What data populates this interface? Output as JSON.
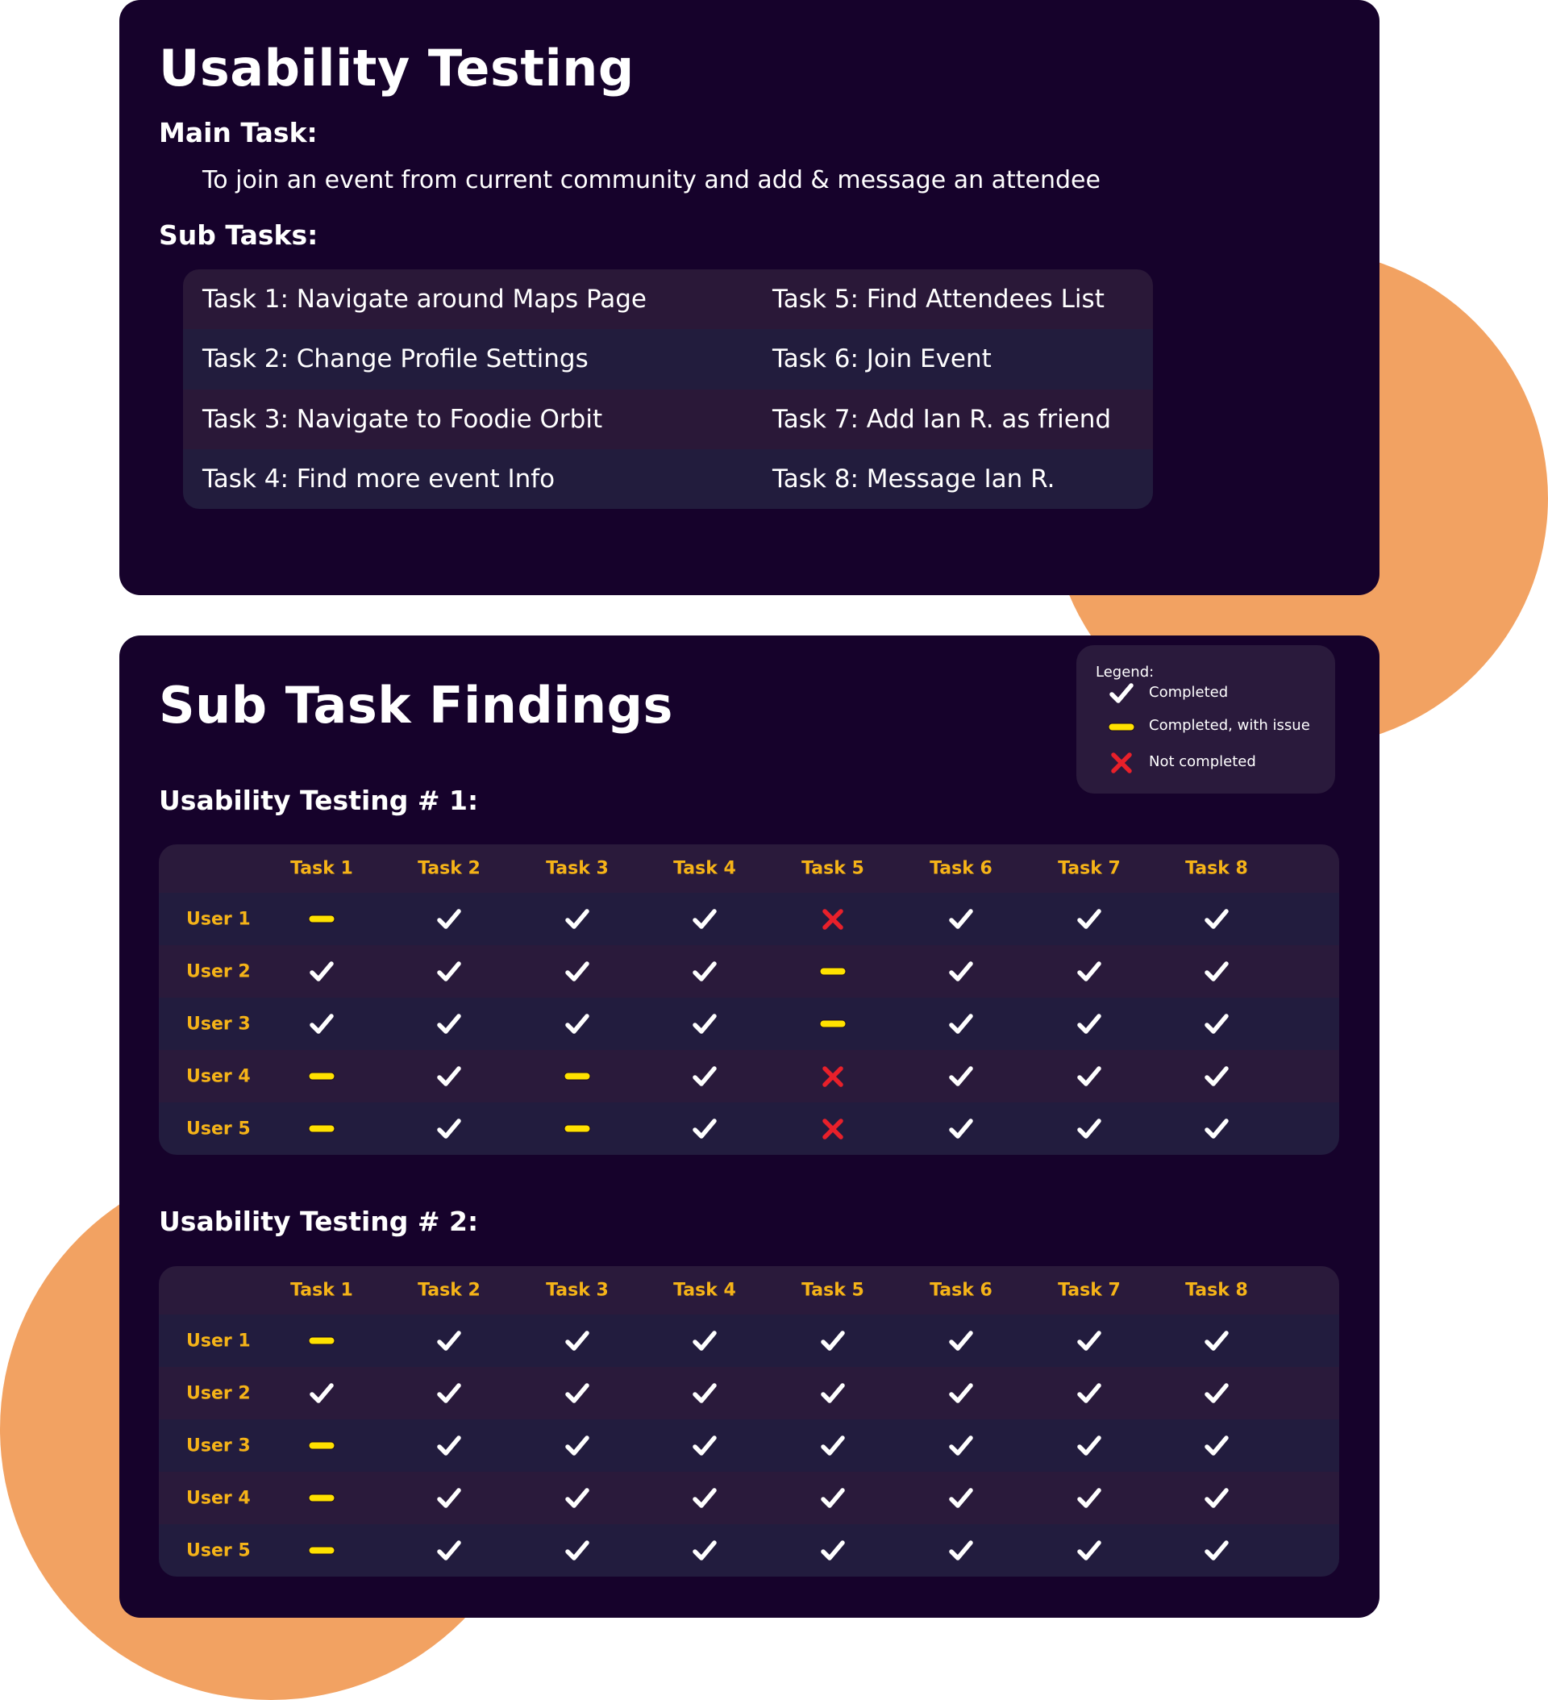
{
  "colors": {
    "background_card": "#16022b",
    "accent_orange": "#f2a262",
    "header_yellow": "#f5b318",
    "issue_yellow": "#ffe100",
    "fail_red": "#e8202a",
    "check_white": "#ffffff"
  },
  "overview": {
    "title": "Usability Testing",
    "main_task_label": "Main Task:",
    "main_task": "To join an event from current community and add & message an attendee",
    "sub_tasks_label": "Sub Tasks:",
    "sub_tasks": [
      [
        "Task 1: Navigate around Maps Page",
        "Task 5: Find Attendees List"
      ],
      [
        "Task 2: Change Profile Settings",
        "Task 6: Join Event"
      ],
      [
        "Task 3: Navigate to Foodie Orbit",
        "Task 7: Add Ian R. as friend"
      ],
      [
        "Task 4: Find more event Info",
        "Task 8: Message Ian R."
      ]
    ]
  },
  "findings": {
    "title": "Sub Task Findings",
    "legend": {
      "title": "Legend:",
      "items": [
        {
          "icon": "check-icon",
          "label": "Completed"
        },
        {
          "icon": "dash-icon",
          "label": "Completed, with issue"
        },
        {
          "icon": "x-icon",
          "label": "Not completed"
        }
      ]
    },
    "tests": [
      {
        "title": "Usability Testing # 1:",
        "columns": [
          "Task 1",
          "Task 2",
          "Task 3",
          "Task 4",
          "Task 5",
          "Task 6",
          "Task 7",
          "Task 8"
        ],
        "rows": [
          {
            "user": "User 1",
            "results": [
              "issue",
              "ok",
              "ok",
              "ok",
              "fail",
              "ok",
              "ok",
              "ok"
            ]
          },
          {
            "user": "User 2",
            "results": [
              "ok",
              "ok",
              "ok",
              "ok",
              "issue",
              "ok",
              "ok",
              "ok"
            ]
          },
          {
            "user": "User 3",
            "results": [
              "ok",
              "ok",
              "ok",
              "ok",
              "issue",
              "ok",
              "ok",
              "ok"
            ]
          },
          {
            "user": "User 4",
            "results": [
              "issue",
              "ok",
              "issue",
              "ok",
              "fail",
              "ok",
              "ok",
              "ok"
            ]
          },
          {
            "user": "User 5",
            "results": [
              "issue",
              "ok",
              "issue",
              "ok",
              "fail",
              "ok",
              "ok",
              "ok"
            ]
          }
        ]
      },
      {
        "title": "Usability Testing # 2:",
        "columns": [
          "Task 1",
          "Task 2",
          "Task 3",
          "Task 4",
          "Task 5",
          "Task 6",
          "Task 7",
          "Task 8"
        ],
        "rows": [
          {
            "user": "User 1",
            "results": [
              "issue",
              "ok",
              "ok",
              "ok",
              "ok",
              "ok",
              "ok",
              "ok"
            ]
          },
          {
            "user": "User 2",
            "results": [
              "ok",
              "ok",
              "ok",
              "ok",
              "ok",
              "ok",
              "ok",
              "ok"
            ]
          },
          {
            "user": "User 3",
            "results": [
              "issue",
              "ok",
              "ok",
              "ok",
              "ok",
              "ok",
              "ok",
              "ok"
            ]
          },
          {
            "user": "User 4",
            "results": [
              "issue",
              "ok",
              "ok",
              "ok",
              "ok",
              "ok",
              "ok",
              "ok"
            ]
          },
          {
            "user": "User 5",
            "results": [
              "issue",
              "ok",
              "ok",
              "ok",
              "ok",
              "ok",
              "ok",
              "ok"
            ]
          }
        ]
      }
    ]
  }
}
